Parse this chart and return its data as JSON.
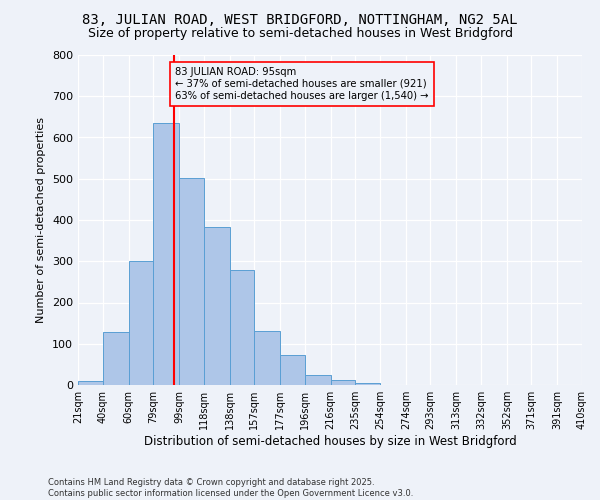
{
  "title": "83, JULIAN ROAD, WEST BRIDGFORD, NOTTINGHAM, NG2 5AL",
  "subtitle": "Size of property relative to semi-detached houses in West Bridgford",
  "xlabel": "Distribution of semi-detached houses by size in West Bridgford",
  "ylabel": "Number of semi-detached properties",
  "footer_line1": "Contains HM Land Registry data © Crown copyright and database right 2025.",
  "footer_line2": "Contains public sector information licensed under the Open Government Licence v3.0.",
  "bin_labels": [
    "21sqm",
    "40sqm",
    "60sqm",
    "79sqm",
    "99sqm",
    "118sqm",
    "138sqm",
    "157sqm",
    "177sqm",
    "196sqm",
    "216sqm",
    "235sqm",
    "254sqm",
    "274sqm",
    "293sqm",
    "313sqm",
    "332sqm",
    "352sqm",
    "371sqm",
    "391sqm",
    "410sqm"
  ],
  "bin_edges": [
    21,
    40,
    60,
    79,
    99,
    118,
    138,
    157,
    177,
    196,
    216,
    235,
    254,
    274,
    293,
    313,
    332,
    352,
    371,
    391,
    410
  ],
  "bar_heights": [
    10,
    128,
    301,
    635,
    502,
    382,
    278,
    130,
    72,
    25,
    12,
    5,
    0,
    0,
    0,
    0,
    0,
    0,
    0,
    0
  ],
  "bar_color": "#aec6e8",
  "bar_edgecolor": "#5a9fd4",
  "vline_x": 95,
  "vline_color": "red",
  "annotation_text": "83 JULIAN ROAD: 95sqm\n← 37% of semi-detached houses are smaller (921)\n63% of semi-detached houses are larger (1,540) →",
  "annotation_box_edgecolor": "red",
  "ylim": [
    0,
    800
  ],
  "yticks": [
    0,
    100,
    200,
    300,
    400,
    500,
    600,
    700,
    800
  ],
  "background_color": "#eef2f9",
  "grid_color": "#ffffff",
  "title_fontsize": 10,
  "subtitle_fontsize": 9
}
